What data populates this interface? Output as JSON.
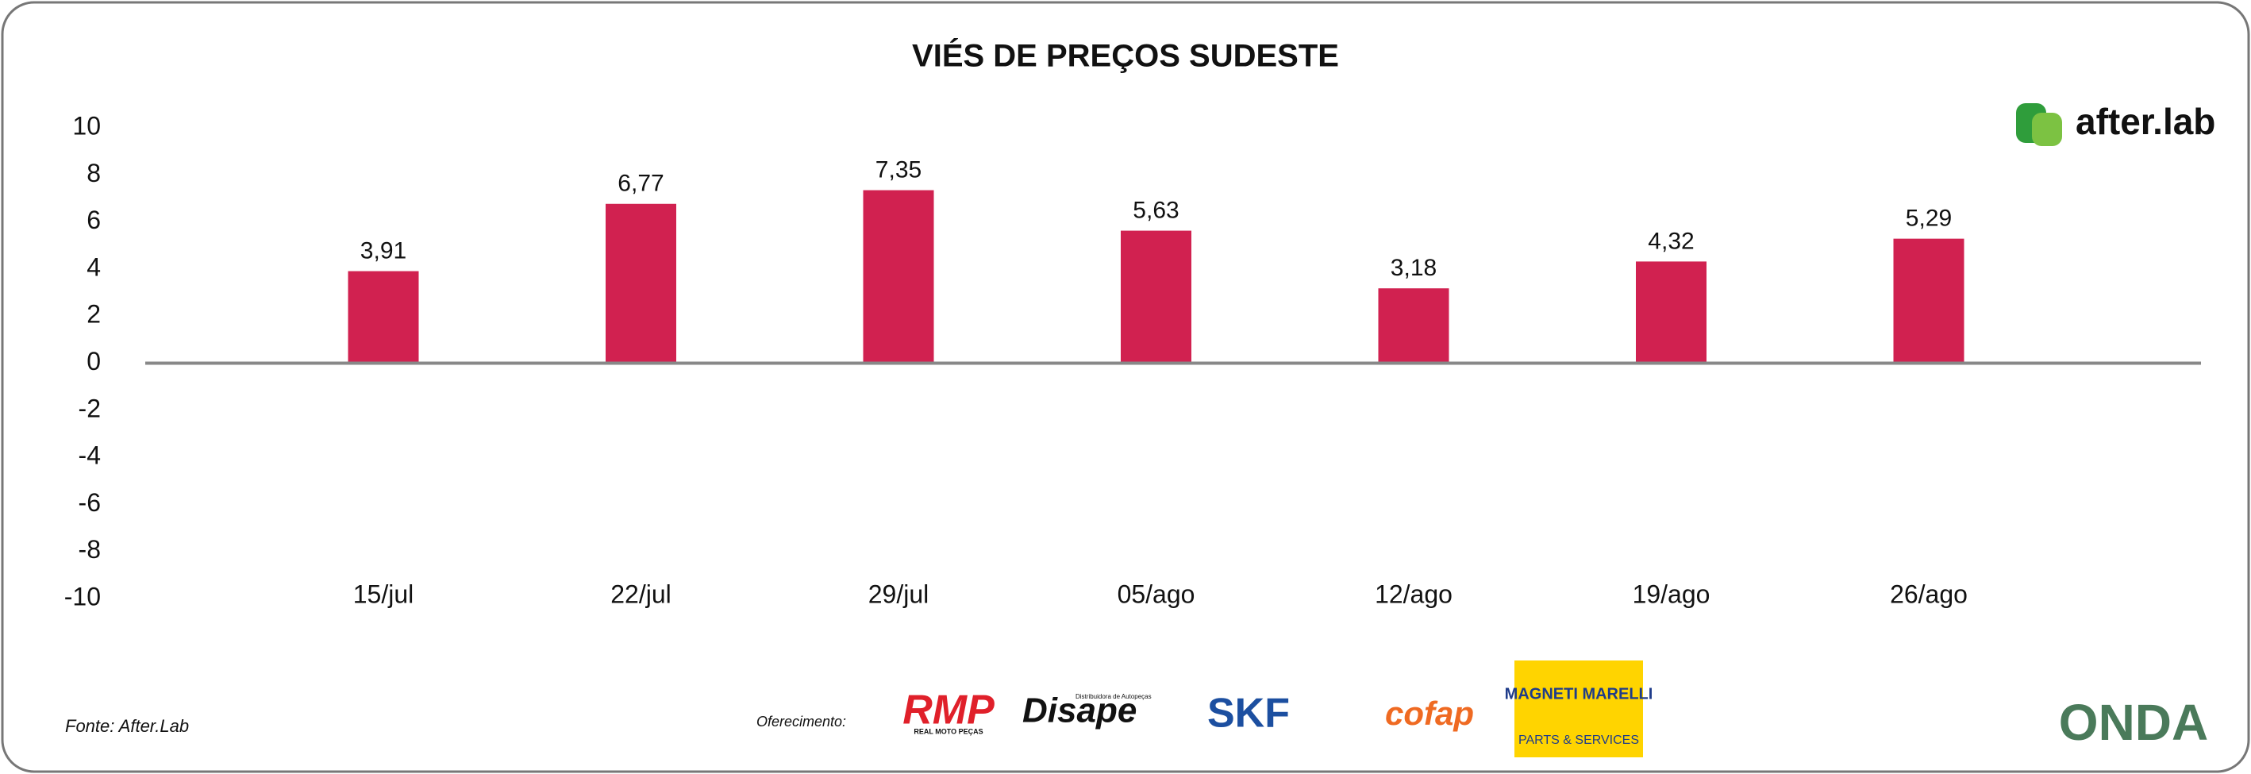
{
  "chart_data": {
    "type": "bar",
    "title": "VIÉS DE PREÇOS SUDESTE",
    "categories": [
      "15/jul",
      "22/jul",
      "29/jul",
      "05/ago",
      "12/ago",
      "19/ago",
      "26/ago"
    ],
    "values": [
      3.91,
      6.77,
      7.35,
      5.63,
      3.18,
      4.32,
      5.29
    ],
    "value_labels": [
      "3,91",
      "6,77",
      "7,35",
      "5,63",
      "3,18",
      "4,32",
      "5,29"
    ],
    "color": "#d12150",
    "ylim": [
      -10,
      10
    ],
    "yticks": [
      -10,
      -8,
      -6,
      -4,
      -2,
      0,
      2,
      4,
      6,
      8,
      10
    ],
    "grid": false
  },
  "brand": "after.lab",
  "footer": {
    "source": "Fonte: After.Lab",
    "sponsor_label": "Oferecimento:",
    "sponsors": [
      "RMP",
      "REAL MOTO PEÇAS",
      "Disape",
      "Distribuidora de Autopeças",
      "SKF",
      "cofap",
      "MAGNETI MARELLI",
      "PARTS & SERVICES",
      "ONDA"
    ]
  }
}
